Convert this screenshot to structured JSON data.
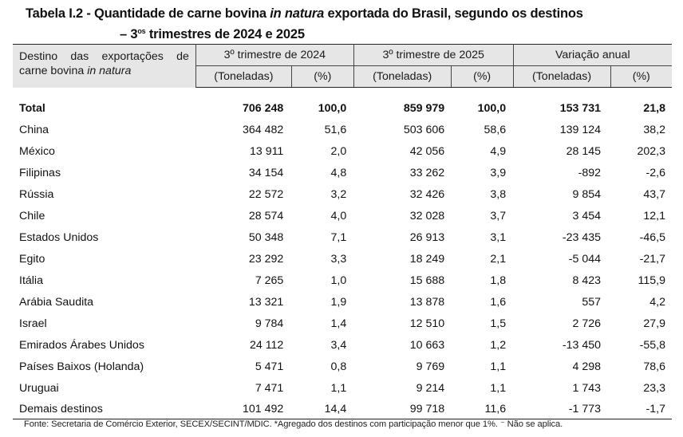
{
  "title": {
    "prefix": "Tabela I.2 - Quantidade de carne bovina ",
    "italic": "in natura",
    "suffix": " exportada do Brasil, segundo os destinos",
    "line2_prefix": "– 3",
    "line2_sup": "os",
    "line2_suffix": " trimestres de 2024 e 2025"
  },
  "header": {
    "destination_label_line1": [
      "Destino",
      "das",
      "exportações",
      "de"
    ],
    "destination_label_line2_prefix": "carne bovina ",
    "destination_label_line2_italic": "in natura",
    "groups": [
      "3º trimestre de 2024",
      "3º trimestre de 2025",
      "Variação anual"
    ],
    "subcolumns": [
      "(Toneladas)",
      "(%)",
      "(Toneladas)",
      "(%)",
      "(Toneladas)",
      "(%)"
    ]
  },
  "rows": [
    {
      "name": "Total",
      "t2024": "706 248",
      "p2024": "100,0",
      "t2025": "859 979",
      "p2025": "100,0",
      "var_t": "153 731",
      "var_p": "21,8"
    },
    {
      "name": "China",
      "t2024": "364 482",
      "p2024": "51,6",
      "t2025": "503 606",
      "p2025": "58,6",
      "var_t": "139 124",
      "var_p": "38,2"
    },
    {
      "name": "México",
      "t2024": "13 911",
      "p2024": "2,0",
      "t2025": "42 056",
      "p2025": "4,9",
      "var_t": "28 145",
      "var_p": "202,3"
    },
    {
      "name": "Filipinas",
      "t2024": "34 154",
      "p2024": "4,8",
      "t2025": "33 262",
      "p2025": "3,9",
      "var_t": "-892",
      "var_p": "-2,6"
    },
    {
      "name": "Rússia",
      "t2024": "22 572",
      "p2024": "3,2",
      "t2025": "32 426",
      "p2025": "3,8",
      "var_t": "9 854",
      "var_p": "43,7"
    },
    {
      "name": "Chile",
      "t2024": "28 574",
      "p2024": "4,0",
      "t2025": "32 028",
      "p2025": "3,7",
      "var_t": "3 454",
      "var_p": "12,1"
    },
    {
      "name": "Estados Unidos",
      "t2024": "50 348",
      "p2024": "7,1",
      "t2025": "26 913",
      "p2025": "3,1",
      "var_t": "-23 435",
      "var_p": "-46,5"
    },
    {
      "name": "Egito",
      "t2024": "23 292",
      "p2024": "3,3",
      "t2025": "18 249",
      "p2025": "2,1",
      "var_t": "-5 044",
      "var_p": "-21,7"
    },
    {
      "name": "Itália",
      "t2024": "7 265",
      "p2024": "1,0",
      "t2025": "15 688",
      "p2025": "1,8",
      "var_t": "8 423",
      "var_p": "115,9"
    },
    {
      "name": "Arábia Saudita",
      "t2024": "13 321",
      "p2024": "1,9",
      "t2025": "13 878",
      "p2025": "1,6",
      "var_t": "557",
      "var_p": "4,2"
    },
    {
      "name": "Israel",
      "t2024": "9 784",
      "p2024": "1,4",
      "t2025": "12 510",
      "p2025": "1,5",
      "var_t": "2 726",
      "var_p": "27,9"
    },
    {
      "name": "Emirados Árabes Unidos",
      "t2024": "24 112",
      "p2024": "3,4",
      "t2025": "10 663",
      "p2025": "1,2",
      "var_t": "-13 450",
      "var_p": "-55,8"
    },
    {
      "name": "Países Baixos (Holanda)",
      "t2024": "5 471",
      "p2024": "0,8",
      "t2025": "9 769",
      "p2025": "1,1",
      "var_t": "4 298",
      "var_p": "78,6"
    },
    {
      "name": "Uruguai",
      "t2024": "7 471",
      "p2024": "1,1",
      "t2025": "9 214",
      "p2025": "1,1",
      "var_t": "1 743",
      "var_p": "23,3"
    },
    {
      "name": "Demais destinos",
      "t2024": "101 492",
      "p2024": "14,4",
      "t2025": "99 718",
      "p2025": "11,6",
      "var_t": "-1 773",
      "var_p": "-1,7"
    }
  ],
  "footer": "Fonte: Secretaria de Comércio Exterior, SECEX/SECINT/MDIC. *Agregado dos destinos com participação menor que 1%. ⁻ Não se aplica."
}
